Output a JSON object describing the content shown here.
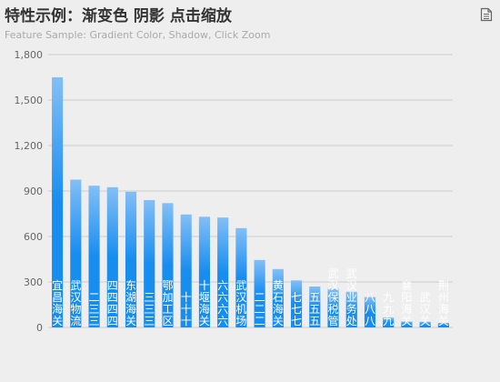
{
  "header": {
    "title": "特性示例：渐变色 阴影 点击缩放",
    "subtitle": "Feature Sample: Gradient Color, Shadow, Click Zoom"
  },
  "toolbox": {
    "icon": "data-view-icon"
  },
  "colors": {
    "bar_top": "#83bff6",
    "bar_mid": "#188df0",
    "bar_bottom": "#188df0",
    "label": "#ffffff",
    "grid": "#cccccc",
    "axis_text": "#666666"
  },
  "chart_data": {
    "type": "bar",
    "title": "特性示例：渐变色 阴影 点击缩放",
    "subtitle": "Feature Sample: Gradient Color, Shadow, Click Zoom",
    "categories": [
      "宜昌海关",
      "武汉物流",
      "二三三",
      "四四四四",
      "东湖海关",
      "三三三",
      "鄂加工区",
      "十十十",
      "十堰海关",
      "六六六六",
      "武汉机场",
      "二二二",
      "黄石海关",
      "七七七",
      "五五五",
      "武汉保税管",
      "武汉业务处",
      "八八八",
      "九九九",
      "襄阳海关",
      "武汉关",
      "荆州海关"
    ],
    "values": [
      1650,
      975,
      935,
      925,
      895,
      840,
      820,
      745,
      730,
      725,
      655,
      445,
      385,
      310,
      270,
      255,
      235,
      200,
      65,
      40,
      38,
      30
    ],
    "ylim": [
      0,
      1800
    ],
    "yticks": [
      0,
      300,
      600,
      900,
      1200,
      1500,
      1800
    ],
    "ytick_labels": [
      "0",
      "300",
      "600",
      "900",
      "1,200",
      "1,500",
      "1,800"
    ],
    "grid": true,
    "legend": "none",
    "xlabel": "",
    "ylabel": ""
  }
}
